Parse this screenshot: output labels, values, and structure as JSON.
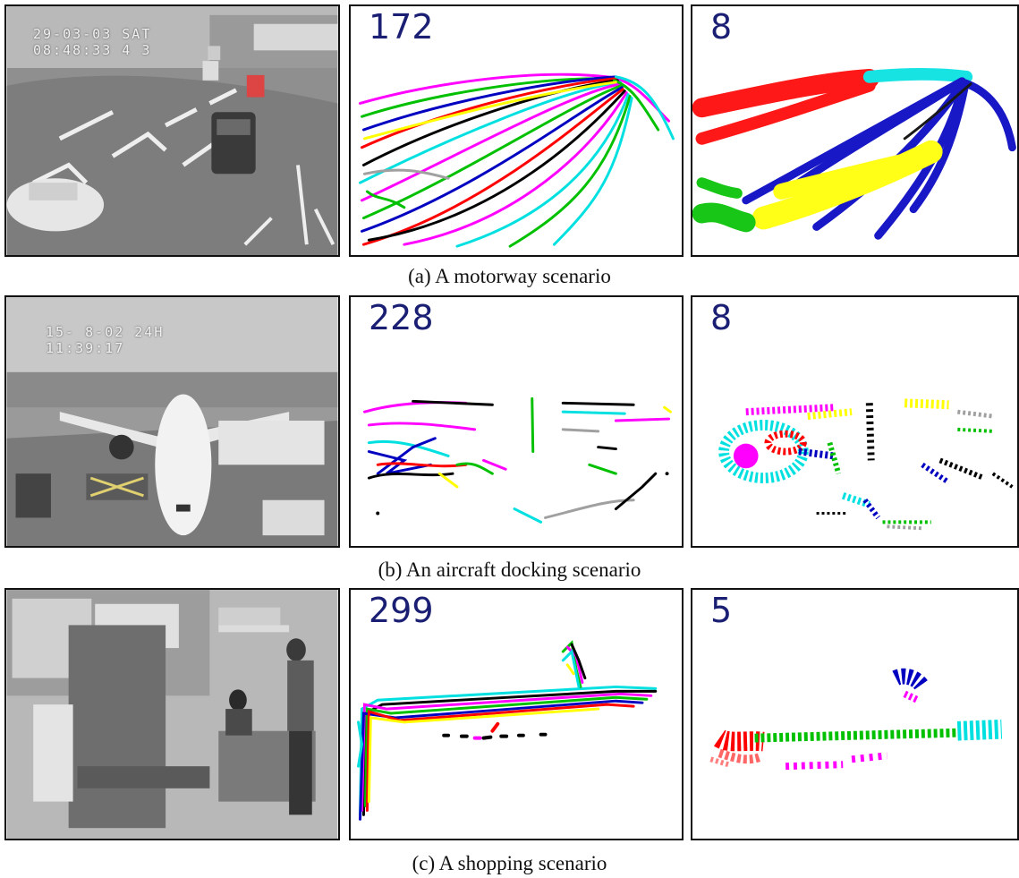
{
  "rows": [
    {
      "caption": "(a) A motorway scenario",
      "stamp_line1": "29-03-03 SAT",
      "stamp_line2": "08:48:33 4 3",
      "trajectory_count": "172",
      "cluster_count": "8"
    },
    {
      "caption": "(b) An aircraft docking scenario",
      "stamp_line1": "15- 8-02  24H",
      "stamp_line2": "11:39:17",
      "trajectory_count": "228",
      "cluster_count": "8"
    },
    {
      "caption": "(c) A shopping scenario",
      "trajectory_count": "299",
      "cluster_count": "5"
    }
  ],
  "colors": {
    "count_text": "#1a1f73",
    "trajectory_palette": [
      "#000000",
      "#ff0000",
      "#00c000",
      "#0000c0",
      "#ff00ff",
      "#00e0e0",
      "#ffff00",
      "#a0a0a0"
    ]
  }
}
